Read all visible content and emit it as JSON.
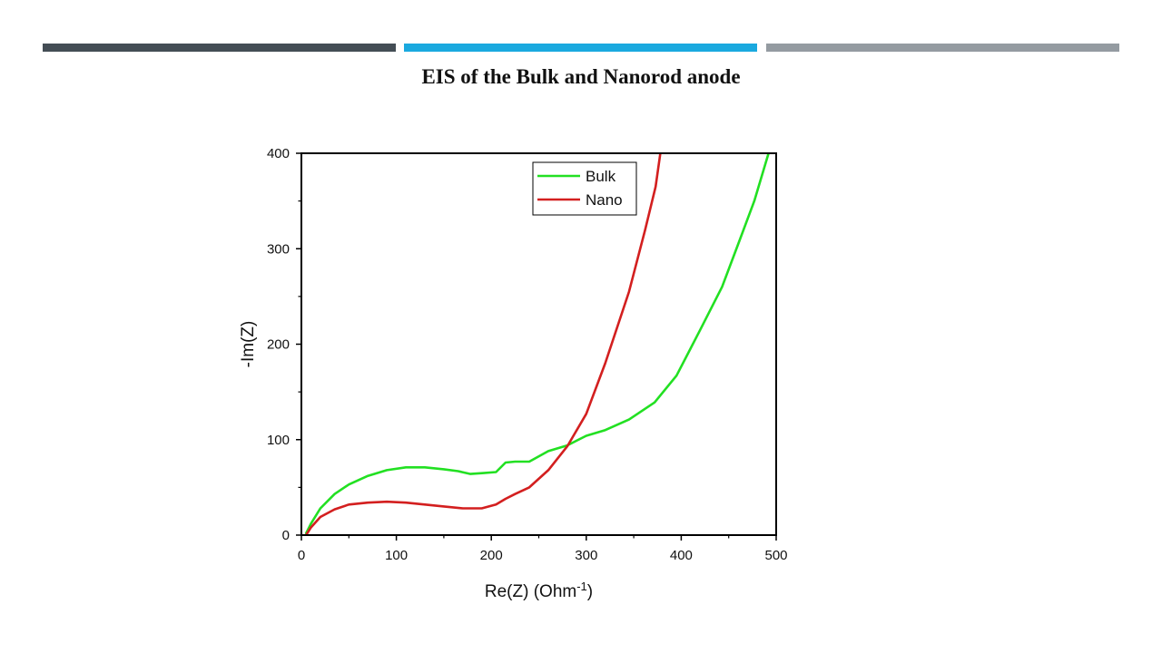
{
  "slide": {
    "title": "EIS of the Bulk and Nanorod anode",
    "bar_colors": [
      "#444d55",
      "#1aa9df",
      "#949ba1"
    ]
  },
  "chart_data": {
    "type": "line",
    "xlabel": "Re(Z) (Ohm",
    "xlabel_sup": "-1",
    "xlabel_suffix": ")",
    "ylabel": "-Im(Z)",
    "xlim": [
      0,
      500
    ],
    "ylim": [
      0,
      400
    ],
    "x_ticks": [
      0,
      100,
      200,
      300,
      400,
      500
    ],
    "y_ticks": [
      0,
      100,
      200,
      300,
      400
    ],
    "grid": false,
    "legend_position": "top-center",
    "series": [
      {
        "name": "Bulk",
        "color": "#22e022",
        "x": [
          5,
          10,
          20,
          35,
          50,
          70,
          90,
          110,
          130,
          150,
          165,
          178,
          192,
          205,
          215,
          225,
          240,
          260,
          280,
          300,
          320,
          345,
          372,
          395,
          420,
          443,
          460,
          477,
          492
        ],
        "y": [
          2,
          12,
          28,
          43,
          53,
          62,
          68,
          71,
          71,
          69,
          67,
          64,
          65,
          66,
          76,
          77,
          77,
          88,
          94,
          104,
          110,
          121,
          139,
          167,
          215,
          260,
          305,
          350,
          400
        ]
      },
      {
        "name": "Nano",
        "color": "#d31f1f",
        "x": [
          5,
          10,
          20,
          35,
          50,
          70,
          90,
          110,
          130,
          150,
          170,
          190,
          205,
          215,
          225,
          240,
          260,
          280,
          300,
          320,
          345,
          362,
          373,
          378
        ],
        "y": [
          0,
          8,
          19,
          27,
          32,
          34,
          35,
          34,
          32,
          30,
          28,
          28,
          32,
          38,
          43,
          50,
          68,
          93,
          127,
          180,
          255,
          320,
          365,
          400
        ]
      }
    ]
  }
}
